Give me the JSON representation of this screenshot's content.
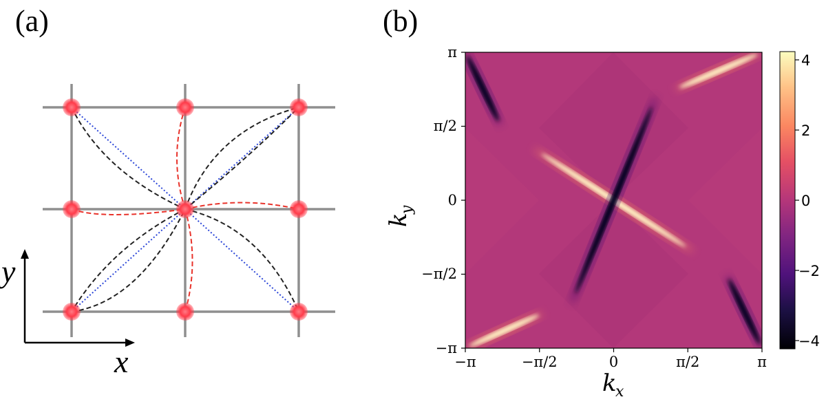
{
  "panel_a": {
    "label": "(a)",
    "axis_x_label": "x",
    "axis_y_label": "y",
    "colors": {
      "grid": "#8f8f8f",
      "site": "#ff3b4a",
      "bond_nn": "#e8322a",
      "bond_nnn": "#222222",
      "bond_diag": "#2a45d8"
    }
  },
  "panel_b": {
    "label": "(b)",
    "xlabel": "k",
    "xlabel_sub": "x",
    "ylabel": "k",
    "ylabel_sub": "y",
    "x_ticks": [
      "−π",
      "−π/2",
      "0",
      "π/2",
      "π"
    ],
    "y_ticks": [
      "π",
      "π/2",
      "0",
      "−π/2",
      "−π"
    ],
    "colorbar_ticks": [
      "4",
      "2",
      "0",
      "−2",
      "−4"
    ]
  },
  "chart_data": {
    "type": "heatmap",
    "x_range": [
      -3.14159,
      3.14159
    ],
    "y_range": [
      -3.14159,
      3.14159
    ],
    "color_range": [
      -4.3,
      4.3
    ],
    "colormap": "magma",
    "background_value": 0,
    "features": [
      {
        "sign": "positive",
        "from": [
          -3.14,
          -3.14
        ],
        "to": [
          -1.5,
          -2.4
        ],
        "peak": 4.2
      },
      {
        "sign": "positive",
        "from": [
          1.3,
          2.35
        ],
        "to": [
          3.14,
          3.14
        ],
        "peak": 4.2
      },
      {
        "sign": "positive",
        "from": [
          -1.7,
          1.1
        ],
        "to": [
          1.7,
          -1.1
        ],
        "peak": 4.3
      },
      {
        "sign": "negative",
        "from": [
          -0.9,
          -2.2
        ],
        "to": [
          0.9,
          2.2
        ],
        "peak": -4.3
      },
      {
        "sign": "negative",
        "from": [
          -3.14,
          3.14
        ],
        "to": [
          -2.4,
          1.6
        ],
        "peak": -4.1
      },
      {
        "sign": "negative",
        "from": [
          2.4,
          -1.6
        ],
        "to": [
          3.14,
          -3.14
        ],
        "peak": -4.1
      }
    ]
  }
}
